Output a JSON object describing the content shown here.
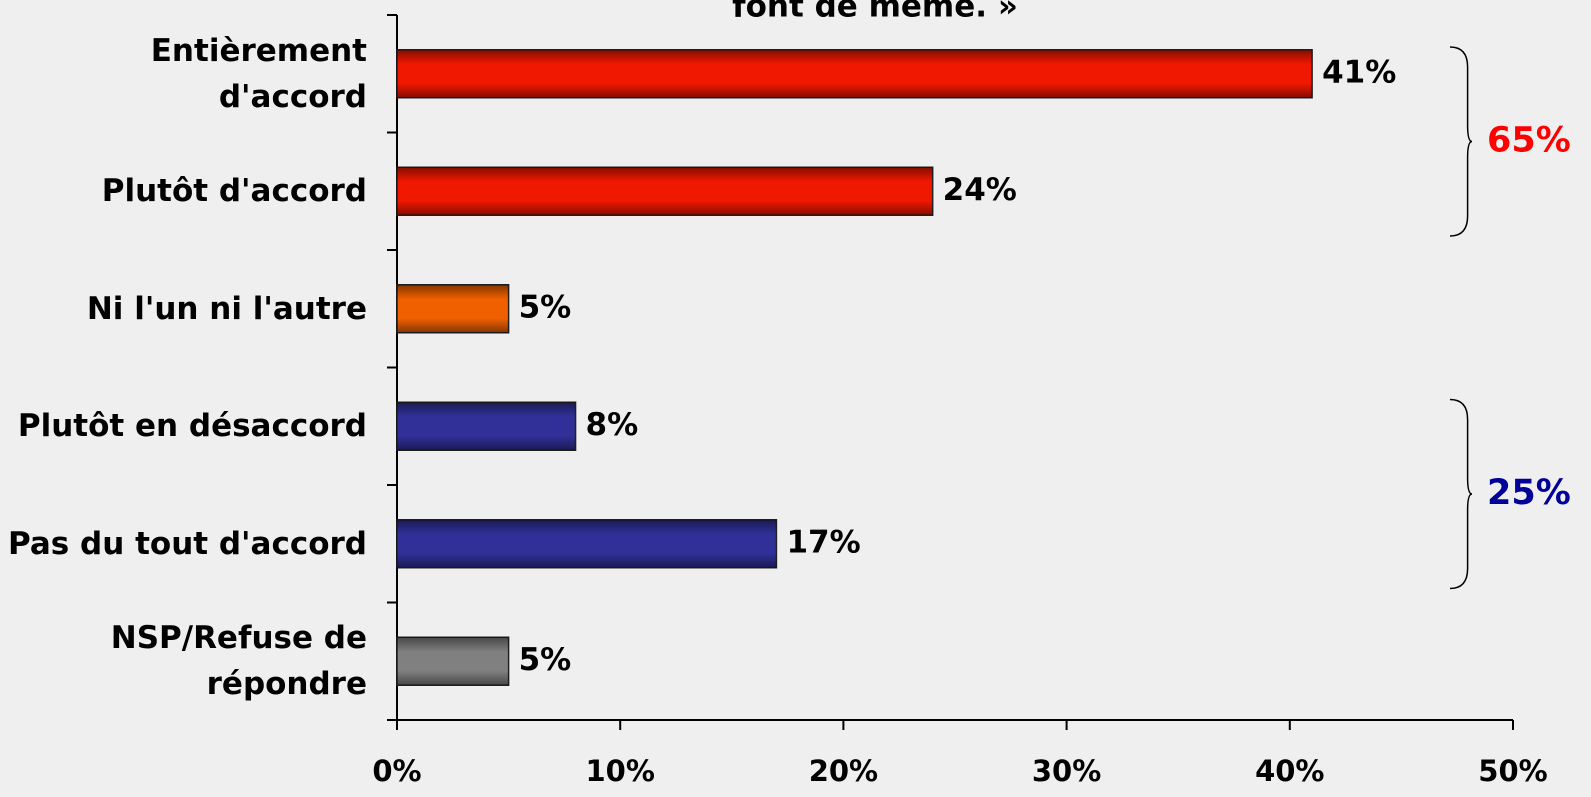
{
  "chart_data": {
    "type": "hbar",
    "title": "font de même. »",
    "categories": [
      "Entièrement\nd'accord",
      "Plutôt d'accord",
      "Ni l'un ni l'autre",
      "Plutôt en désaccord",
      "Pas du tout d'accord",
      "NSP/Refuse de\nrépondre"
    ],
    "values": [
      41,
      24,
      5,
      8,
      17,
      5
    ],
    "value_labels": [
      "41%",
      "24%",
      "5%",
      "8%",
      "17%",
      "5%"
    ],
    "colors": [
      "#f01800",
      "#f01800",
      "#f06000",
      "#303098",
      "#303098",
      "#808080"
    ],
    "xlim": [
      0,
      50
    ],
    "xticks": [
      {
        "value": 0,
        "label": "0%"
      },
      {
        "value": 10,
        "label": "10%"
      },
      {
        "value": 20,
        "label": "20%"
      },
      {
        "value": 30,
        "label": "30%"
      },
      {
        "value": 40,
        "label": "40%"
      },
      {
        "value": 50,
        "label": "50%"
      }
    ],
    "annotations": [
      {
        "label": "65%",
        "value": 65,
        "color": "#ff0000",
        "from": 0,
        "to": 1
      },
      {
        "label": "25%",
        "value": 25,
        "color": "#000099",
        "from": 3,
        "to": 4
      }
    ]
  }
}
